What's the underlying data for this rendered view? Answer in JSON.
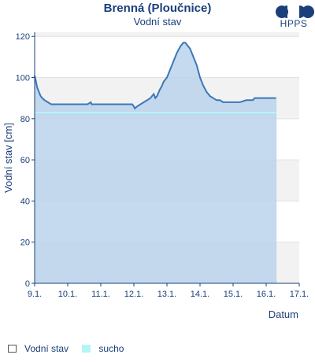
{
  "chart_data": {
    "type": "area",
    "title": "Brenná (Ploučnice)",
    "subtitle": "Vodní stav",
    "ylabel": "Vodní stav [cm]",
    "xlabel": "Datum",
    "ylim": [
      0,
      122
    ],
    "xlim": [
      0,
      8
    ],
    "x_tick_labels": [
      "9.1.",
      "10.1.",
      "11.1.",
      "12.1.",
      "13.1.",
      "14.1.",
      "15.1.",
      "16.1.",
      "17.1."
    ],
    "y_ticks": [
      0,
      20,
      40,
      60,
      80,
      100,
      120
    ],
    "grid": true,
    "legend_position": "bottom-left",
    "series": [
      {
        "name": "Vodní stav",
        "color": "#3a78b8",
        "fill": "#bcd4ec",
        "x": [
          0.0,
          0.04,
          0.08,
          0.13,
          0.18,
          0.23,
          0.3,
          0.4,
          0.5,
          0.7,
          1.0,
          1.3,
          1.6,
          1.7,
          1.72,
          1.9,
          2.2,
          2.5,
          2.8,
          2.95,
          3.0,
          3.03,
          3.1,
          3.2,
          3.3,
          3.4,
          3.5,
          3.55,
          3.6,
          3.65,
          3.7,
          3.78,
          3.85,
          3.9,
          4.0,
          4.1,
          4.2,
          4.3,
          4.4,
          4.45,
          4.5,
          4.55,
          4.6,
          4.7,
          4.8,
          4.9,
          5.0,
          5.1,
          5.2,
          5.3,
          5.4,
          5.5,
          5.6,
          5.7,
          5.8,
          6.0,
          6.2,
          6.4,
          6.6,
          6.65,
          6.8,
          7.0,
          7.2,
          7.3
        ],
        "values": [
          101,
          98,
          95,
          93,
          91,
          90,
          89,
          88,
          87,
          87,
          87,
          87,
          87,
          88,
          87,
          87,
          87,
          87,
          87,
          87,
          86,
          85,
          86,
          87,
          88,
          89,
          90,
          91,
          92,
          90,
          91,
          94,
          96,
          98,
          100,
          104,
          108,
          112,
          115,
          116,
          117,
          117,
          116,
          114,
          110,
          106,
          100,
          96,
          93,
          91,
          90,
          89,
          89,
          88,
          88,
          88,
          88,
          89,
          89,
          90,
          90,
          90,
          90,
          90
        ]
      },
      {
        "name": "sucho",
        "color": "#b4f5f8",
        "values": [
          83
        ]
      }
    ]
  },
  "legend": {
    "items": [
      {
        "label": "Vodní stav",
        "color": "#ffffff",
        "border": "#555555"
      },
      {
        "label": "sucho",
        "color": "#b4f5f8",
        "border": "#b4f5f8"
      }
    ]
  },
  "logo": {
    "text": "HPPS"
  }
}
